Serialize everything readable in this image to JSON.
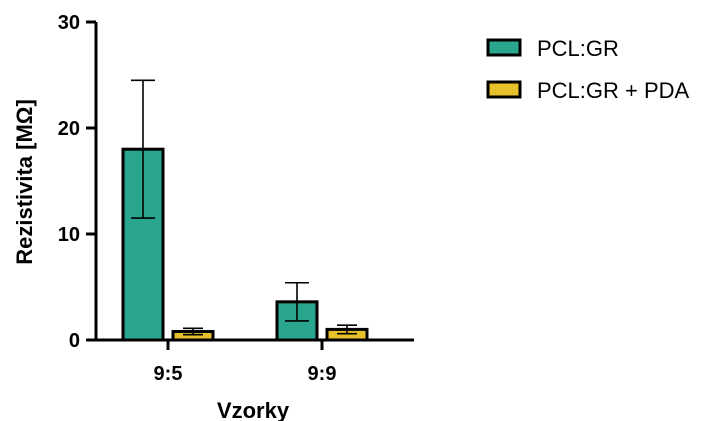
{
  "chart_data": {
    "type": "bar",
    "categories": [
      "9:5",
      "9:9"
    ],
    "series": [
      {
        "name": "PCL:GR",
        "color": "#2aa58e",
        "values": [
          18.0,
          3.6
        ],
        "error": [
          6.5,
          1.8
        ]
      },
      {
        "name": "PCL:GR + PDA",
        "color": "#e6c12a",
        "values": [
          0.8,
          1.0
        ],
        "error": [
          0.3,
          0.4
        ]
      }
    ],
    "xlabel": "Vzorky",
    "ylabel": "Rezistivita [MΩ]",
    "ylim": [
      0,
      30
    ],
    "yticks": [
      0,
      10,
      20,
      30
    ],
    "ytick_labels": [
      "0",
      "10",
      "20",
      "30"
    ],
    "legend_position": "top-right",
    "grid": false
  }
}
